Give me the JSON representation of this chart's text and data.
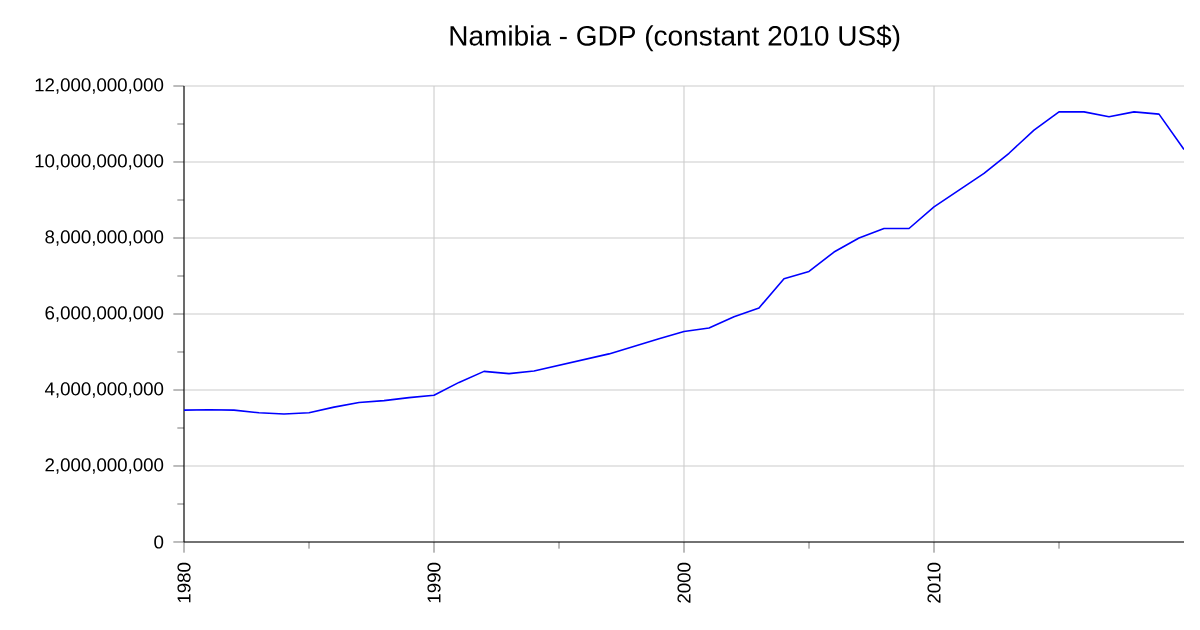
{
  "chart_data": {
    "type": "line",
    "title": "Namibia - GDP (constant 2010 US$)",
    "x": [
      1980,
      1981,
      1982,
      1983,
      1984,
      1985,
      1986,
      1987,
      1988,
      1989,
      1990,
      1991,
      1992,
      1993,
      1994,
      1995,
      1996,
      1997,
      1998,
      1999,
      2000,
      2001,
      2002,
      2003,
      2004,
      2005,
      2006,
      2007,
      2008,
      2009,
      2010,
      2011,
      2012,
      2013,
      2014,
      2015,
      2016,
      2017,
      2018,
      2019,
      2020
    ],
    "series": [
      {
        "color": "#0000ff",
        "values": [
          3470000000,
          3480000000,
          3470000000,
          3400000000,
          3370000000,
          3400000000,
          3550000000,
          3670000000,
          3720000000,
          3800000000,
          3860000000,
          4200000000,
          4490000000,
          4430000000,
          4500000000,
          4650000000,
          4800000000,
          4950000000,
          5150000000,
          5350000000,
          5540000000,
          5630000000,
          5930000000,
          6160000000,
          6930000000,
          7120000000,
          7630000000,
          8000000000,
          8250000000,
          8250000000,
          8820000000,
          9260000000,
          9700000000,
          10230000000,
          10840000000,
          11320000000,
          11320000000,
          11190000000,
          11320000000,
          11260000000,
          10330000000
        ]
      }
    ],
    "xlim": [
      1980,
      2020
    ],
    "xticks": [
      1980,
      {
        "value": 1985,
        "label": null
      },
      1990,
      {
        "value": 1995,
        "label": null
      },
      2000,
      {
        "value": 2005,
        "label": null
      },
      2010,
      {
        "value": 2015,
        "label": null
      }
    ],
    "ylim": [
      0,
      12000000000
    ],
    "yticks": [
      0,
      {
        "value": 1000000000,
        "label": null
      },
      {
        "value": 2000000000,
        "label": "2,000,000,000"
      },
      {
        "value": 3000000000,
        "label": null
      },
      {
        "value": 4000000000,
        "label": "4,000,000,000"
      },
      {
        "value": 5000000000,
        "label": null
      },
      {
        "value": 6000000000,
        "label": "6,000,000,000"
      },
      {
        "value": 7000000000,
        "label": null
      },
      {
        "value": 8000000000,
        "label": "8,000,000,000"
      },
      {
        "value": 9000000000,
        "label": null
      },
      {
        "value": 10000000000,
        "label": "10,000,000,000"
      },
      {
        "value": 11000000000,
        "label": null
      },
      {
        "value": 12000000000,
        "label": "12,000,000,000"
      }
    ],
    "grid": true,
    "marker": "none",
    "line_style": "solid"
  }
}
